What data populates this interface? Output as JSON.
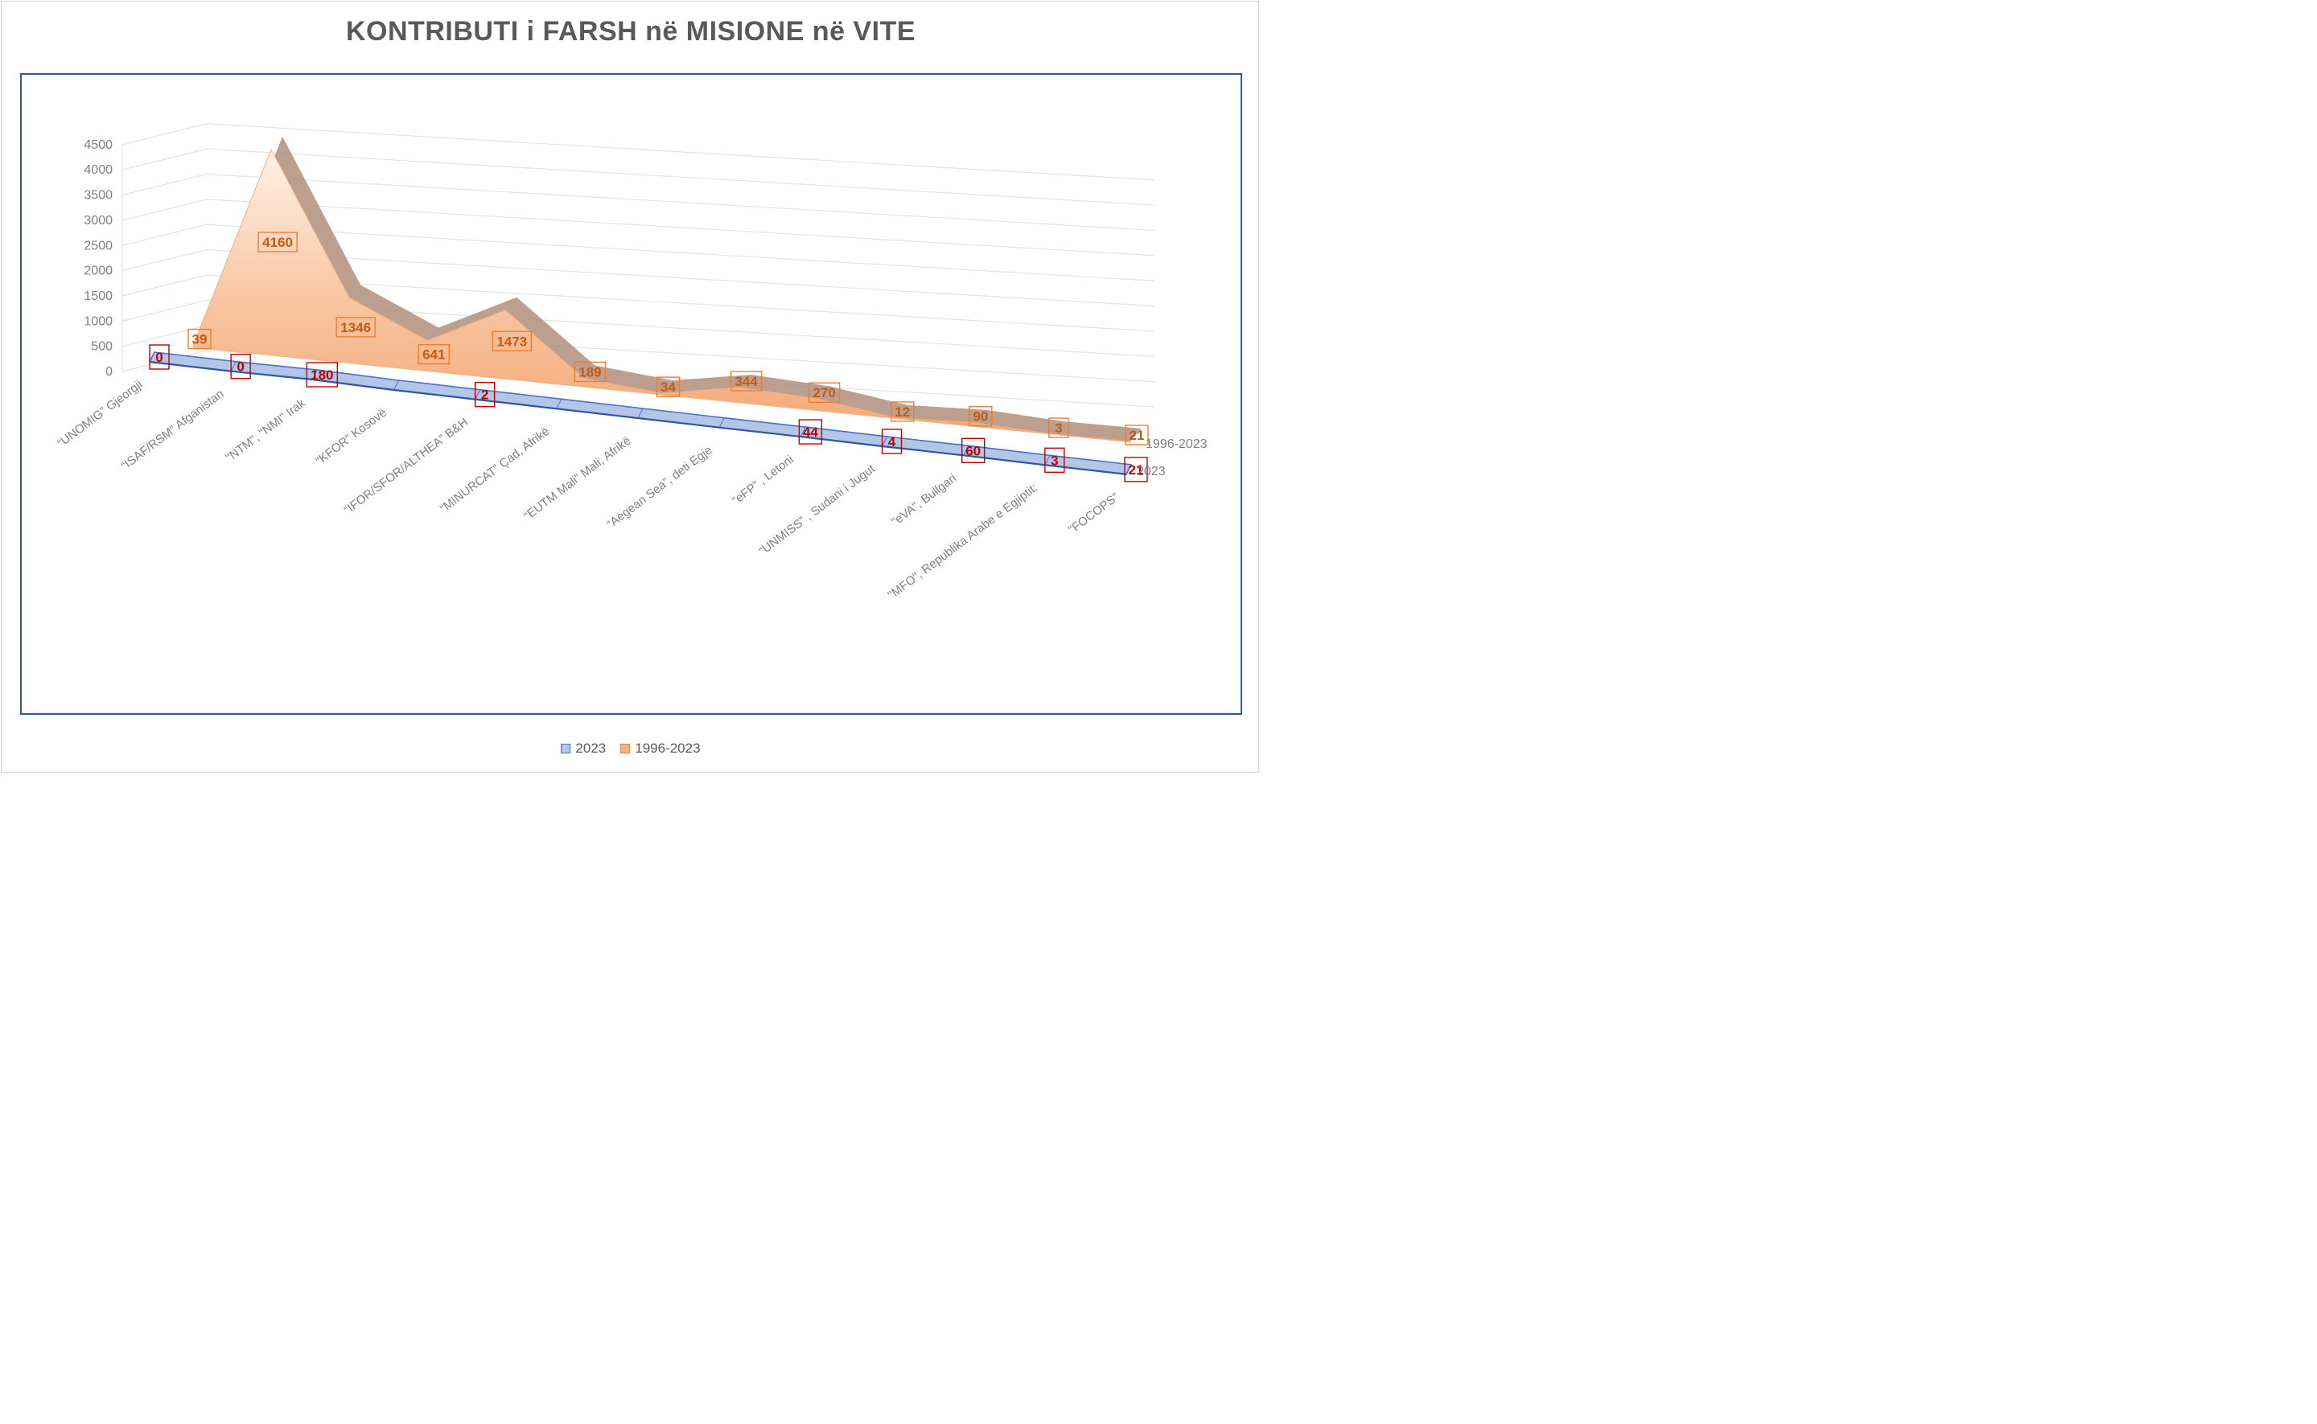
{
  "chart_data": {
    "type": "area",
    "title": "KONTRIBUTI i FARSH në MISIONE në VITE",
    "categories": [
      "“UNOMIG” Gjeorgji",
      "“ISAF/RSM” Afganistan",
      "\"NTM\", \"NMI\" Irak",
      "“KFOR” Kosovë",
      "“IFOR/SFOR/ALTHEA” B&H",
      "“MINURCAT” Çad, Afrikë",
      "“EUTM Mali” Mali, Afrikë",
      "“Aegean Sea”, deti Egje",
      "“eFP” , Letoni",
      "“UNMISS” , Sudani i Jugut",
      "\"eVA\", Bullgari",
      "\"MFO\", Republika Arabe e Egjiptit:",
      "\"FOCOPS\""
    ],
    "series": [
      {
        "name": "2023",
        "values": [
          0,
          0,
          180,
          null,
          2,
          null,
          null,
          null,
          44,
          4,
          60,
          3,
          21
        ],
        "labels": [
          "0",
          "0",
          "180",
          "",
          "2",
          "",
          "",
          "",
          "44",
          "4",
          "60",
          "3",
          "21"
        ],
        "color": "#4472c4",
        "fill": "#b4c6e7",
        "label_color": "#c00000"
      },
      {
        "name": "1996-2023",
        "values": [
          39,
          4160,
          1346,
          641,
          1473,
          189,
          34,
          344,
          270,
          12,
          90,
          3,
          21
        ],
        "labels": [
          "39",
          "4160",
          "1346",
          "641",
          "1473",
          "189",
          "34",
          "344",
          "270",
          "12",
          "90",
          "3",
          "21"
        ],
        "color": "#ed7d31",
        "fill": "#f4b183",
        "label_color": "#c55a11"
      }
    ],
    "y_ticks": [
      "0",
      "500",
      "1000",
      "1500",
      "2000",
      "2500",
      "3000",
      "3500",
      "4000",
      "4500"
    ],
    "ylim": [
      0,
      4500
    ],
    "grid": true,
    "legend_position": "bottom",
    "depth_labels": [
      "1996-2023",
      "2023"
    ]
  },
  "legend": {
    "items": [
      "2023",
      "1996-2023"
    ]
  }
}
